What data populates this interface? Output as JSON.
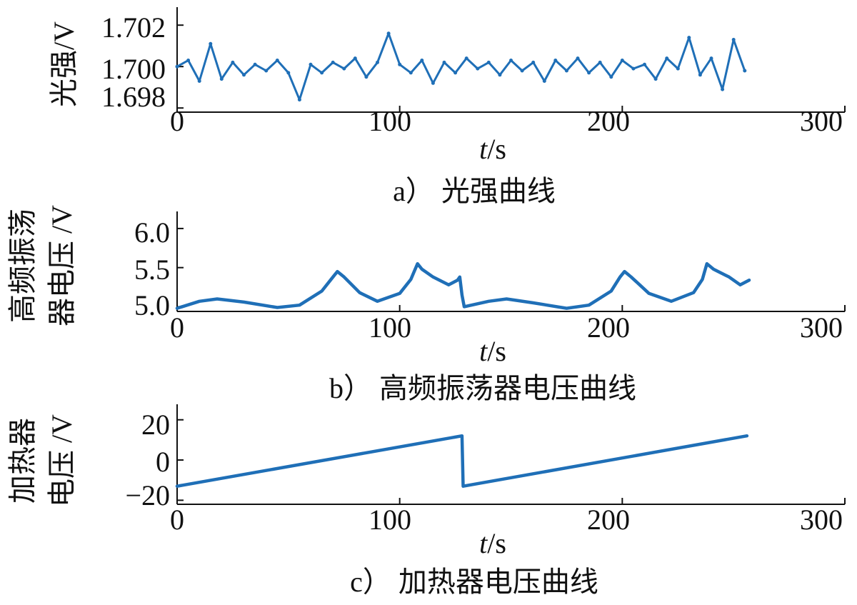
{
  "colors": {
    "series": "#1f6fb7",
    "axis": "#111111",
    "background": "#ffffff"
  },
  "chart_data": [
    {
      "type": "line",
      "caption": "a） 光强曲线",
      "ylabel": "光强/V",
      "xlabel_italic": "t",
      "xlabel_unit": "/s",
      "xlim": [
        0,
        300
      ],
      "ylim": [
        1.6978,
        1.7028
      ],
      "xticks": [
        0,
        100,
        200,
        300
      ],
      "xtick_labels": [
        "0",
        "100",
        "200",
        "300"
      ],
      "yticks": [
        1.698,
        1.7,
        1.702
      ],
      "ytick_labels": [
        "1.698",
        "1.700",
        "1.702"
      ],
      "grid": false,
      "series": [
        {
          "x": [
            0,
            5,
            10,
            15,
            20,
            25,
            30,
            35,
            40,
            45,
            50,
            55,
            60,
            65,
            70,
            75,
            80,
            85,
            90,
            95,
            100,
            105,
            110,
            115,
            120,
            125,
            130,
            135,
            140,
            145,
            150,
            155,
            160,
            165,
            170,
            175,
            180,
            185,
            190,
            195,
            200,
            205,
            210,
            215,
            220,
            225,
            230,
            235,
            240,
            245,
            250,
            255
          ],
          "y": [
            1.7,
            1.7003,
            1.6993,
            1.7011,
            1.6994,
            1.7002,
            1.6996,
            1.7001,
            1.6998,
            1.7003,
            1.6997,
            1.6984,
            1.7001,
            1.6997,
            1.7002,
            1.6999,
            1.7004,
            1.6995,
            1.7002,
            1.7016,
            1.7001,
            1.6997,
            1.7003,
            1.6992,
            1.7002,
            1.6997,
            1.7004,
            1.6999,
            1.7002,
            1.6996,
            1.7003,
            1.6998,
            1.7002,
            1.6993,
            1.7003,
            1.6998,
            1.7004,
            1.6997,
            1.7002,
            1.6995,
            1.7003,
            1.6999,
            1.7001,
            1.6994,
            1.7004,
            1.6999,
            1.7014,
            1.6996,
            1.7004,
            1.6989,
            1.7013,
            1.6998
          ]
        }
      ]
    },
    {
      "type": "line",
      "caption": "b） 高频振荡器电压曲线",
      "ylabel_lines": [
        "高频振荡",
        "器电压 /V"
      ],
      "xlabel_italic": "t",
      "xlabel_unit": "/s",
      "xlim": [
        0,
        300
      ],
      "ylim": [
        4.94,
        6.2
      ],
      "xticks": [
        0,
        100,
        200,
        300
      ],
      "xtick_labels": [
        "0",
        "100",
        "200",
        "300"
      ],
      "yticks": [
        5.0,
        5.5,
        6.0
      ],
      "ytick_labels": [
        "5.0",
        "5.5",
        "6.0"
      ],
      "grid": false,
      "series": [
        {
          "x": [
            0,
            10,
            18,
            30,
            45,
            55,
            65,
            70,
            72,
            75,
            82,
            90,
            100,
            105,
            108,
            110,
            115,
            122,
            126,
            127,
            128,
            129,
            140,
            148,
            160,
            175,
            185,
            195,
            199,
            201,
            204,
            212,
            222,
            232,
            236,
            238,
            241,
            248,
            253,
            257
          ],
          "y": [
            4.98,
            5.07,
            5.1,
            5.06,
            4.99,
            5.02,
            5.2,
            5.38,
            5.45,
            5.38,
            5.18,
            5.07,
            5.17,
            5.35,
            5.55,
            5.48,
            5.38,
            5.28,
            5.34,
            5.38,
            5.15,
            5.0,
            5.07,
            5.1,
            5.05,
            4.98,
            5.02,
            5.2,
            5.38,
            5.45,
            5.38,
            5.17,
            5.07,
            5.18,
            5.35,
            5.55,
            5.48,
            5.38,
            5.28,
            5.34
          ]
        }
      ]
    },
    {
      "type": "line",
      "caption": "c） 加热器电压曲线",
      "ylabel_lines": [
        "加热器",
        "电压 /V"
      ],
      "xlabel_italic": "t",
      "xlabel_unit": "/s",
      "xlim": [
        0,
        300
      ],
      "ylim": [
        -22,
        27
      ],
      "xticks": [
        0,
        100,
        200,
        300
      ],
      "xtick_labels": [
        "0",
        "100",
        "200",
        "300"
      ],
      "yticks": [
        -20,
        0,
        20
      ],
      "ytick_labels": [
        "−20",
        "0",
        "20"
      ],
      "grid": false,
      "series": [
        {
          "x": [
            0,
            128,
            128.5,
            256
          ],
          "y": [
            -13,
            12,
            -13,
            12
          ]
        }
      ]
    }
  ]
}
